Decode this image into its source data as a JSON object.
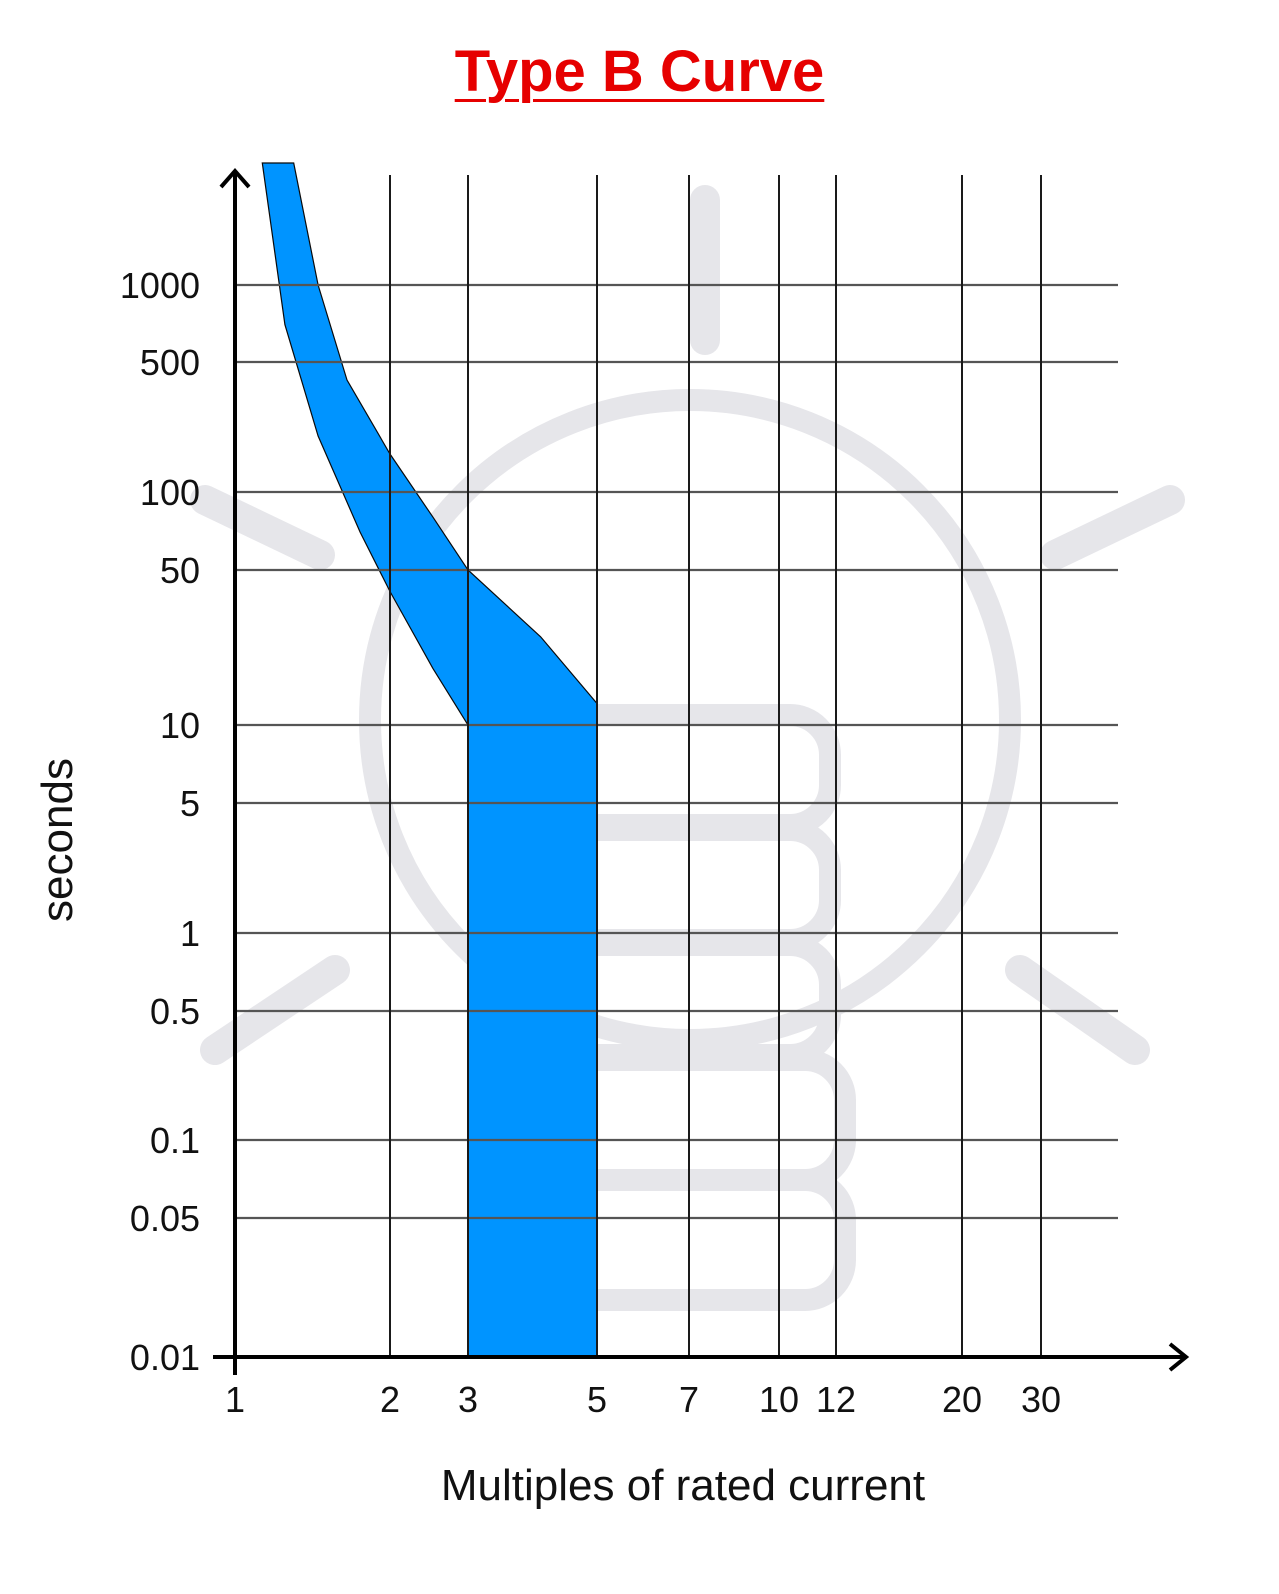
{
  "chart_data": {
    "type": "area",
    "title": "Type B Curve",
    "xlabel": "Multiples of rated current",
    "ylabel": "seconds",
    "x_scale": "log",
    "y_scale": "log",
    "x_ticks": [
      1,
      2,
      3,
      5,
      7,
      10,
      12,
      20,
      30
    ],
    "y_ticks": [
      0.01,
      0.05,
      0.1,
      0.5,
      1,
      5,
      10,
      50,
      100,
      500,
      1000
    ],
    "x_tick_labels": [
      "1",
      "2",
      "3",
      "5",
      "7",
      "10",
      "12",
      "20",
      "30"
    ],
    "y_tick_labels": [
      "0.01",
      "0.05",
      "0.1",
      "0.5",
      "1",
      "5",
      "10",
      "50",
      "100",
      "500",
      "1000"
    ],
    "xlim": [
      1,
      45
    ],
    "ylim": [
      0.01,
      4000
    ],
    "grid": true,
    "band": {
      "left_boundary": [
        {
          "x": 1.13,
          "y": 3000
        },
        {
          "x": 1.25,
          "y": 700
        },
        {
          "x": 1.45,
          "y": 200
        },
        {
          "x": 1.75,
          "y": 70
        },
        {
          "x": 2.0,
          "y": 40
        },
        {
          "x": 2.5,
          "y": 18
        },
        {
          "x": 3.0,
          "y": 10
        },
        {
          "x": 3.0,
          "y": 0.01
        }
      ],
      "right_boundary": [
        {
          "x": 1.3,
          "y": 3000
        },
        {
          "x": 1.45,
          "y": 1000
        },
        {
          "x": 1.65,
          "y": 400
        },
        {
          "x": 2.0,
          "y": 160
        },
        {
          "x": 2.5,
          "y": 80
        },
        {
          "x": 3.0,
          "y": 50
        },
        {
          "x": 4.0,
          "y": 25
        },
        {
          "x": 5.0,
          "y": 12.5
        },
        {
          "x": 5.0,
          "y": 0.01
        }
      ]
    },
    "colors": {
      "band": "#0094FF",
      "title": "#E60000",
      "grid": "#1a1a1a",
      "watermark": "#E6E6EA"
    }
  }
}
